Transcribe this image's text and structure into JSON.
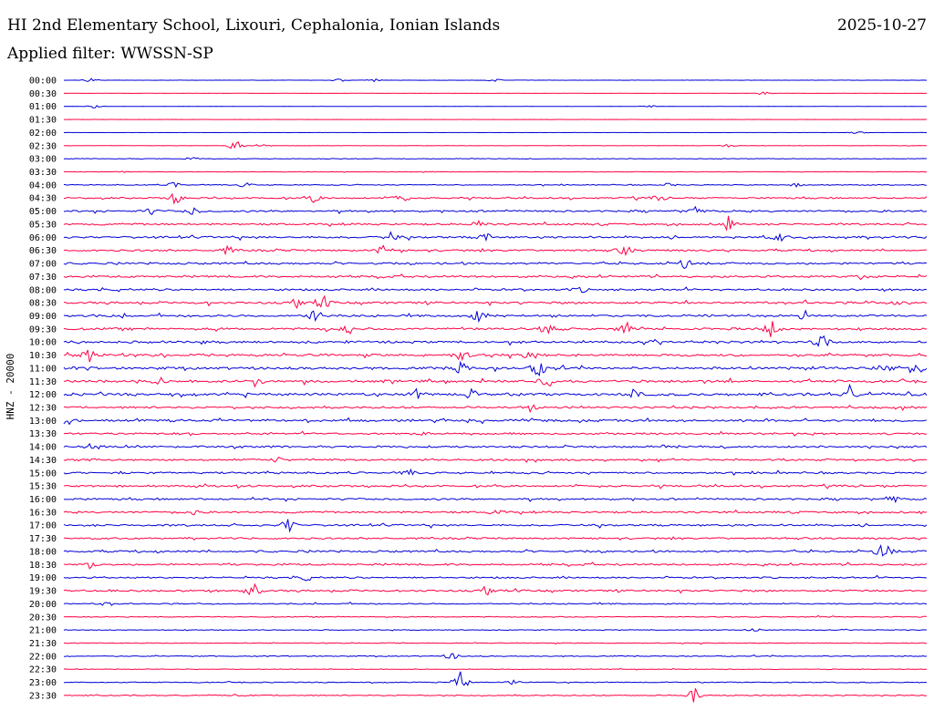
{
  "header": {
    "station_title": "HI 2nd Elementary School, Lixouri, Cephalonia, Ionian Islands",
    "date": "2025-10-27",
    "filter_label": "Applied filter: WWSSN-SP"
  },
  "chart_data": {
    "type": "line",
    "title": "HI 2nd Elementary School, Lixouri, Cephalonia, Ionian Islands",
    "subtitle": "Applied filter: WWSSN-SP",
    "ylabel": "HNZ - 20000",
    "grid": false,
    "colors": {
      "even_row": "#0000d8",
      "odd_row": "#ff0044"
    },
    "rows": [
      {
        "label": "00:00",
        "noise": 0.15,
        "events": [
          [
            0.03,
            3
          ],
          [
            0.32,
            2
          ],
          [
            0.36,
            2
          ],
          [
            0.5,
            2
          ]
        ]
      },
      {
        "label": "00:30",
        "noise": 0.1,
        "events": [
          [
            0.81,
            3
          ]
        ]
      },
      {
        "label": "01:00",
        "noise": 0.15,
        "events": [
          [
            0.035,
            2
          ],
          [
            0.68,
            1.5
          ]
        ]
      },
      {
        "label": "01:30",
        "noise": 0.1,
        "events": []
      },
      {
        "label": "02:00",
        "noise": 0.1,
        "events": [
          [
            0.92,
            2
          ]
        ]
      },
      {
        "label": "02:30",
        "noise": 0.25,
        "events": [
          [
            0.2,
            10
          ],
          [
            0.23,
            3
          ],
          [
            0.77,
            2
          ]
        ]
      },
      {
        "label": "03:00",
        "noise": 0.4,
        "events": [
          [
            0.15,
            2
          ]
        ]
      },
      {
        "label": "03:30",
        "noise": 0.3,
        "events": [
          [
            0.07,
            1.5
          ],
          [
            0.42,
            1.5
          ]
        ]
      },
      {
        "label": "04:00",
        "noise": 0.6,
        "events": [
          [
            0.13,
            5
          ],
          [
            0.21,
            3
          ],
          [
            0.7,
            2
          ],
          [
            0.85,
            2
          ]
        ]
      },
      {
        "label": "04:30",
        "noise": 1.0,
        "events": [
          [
            0.13,
            9
          ],
          [
            0.29,
            5
          ],
          [
            0.39,
            7
          ],
          [
            0.69,
            4
          ]
        ]
      },
      {
        "label": "05:00",
        "noise": 1.2,
        "events": [
          [
            0.1,
            4
          ],
          [
            0.15,
            5
          ],
          [
            0.73,
            6
          ]
        ]
      },
      {
        "label": "05:30",
        "noise": 1.2,
        "events": [
          [
            0.48,
            5
          ],
          [
            0.77,
            9
          ]
        ]
      },
      {
        "label": "06:00",
        "noise": 1.3,
        "events": [
          [
            0.38,
            6
          ],
          [
            0.49,
            6
          ],
          [
            0.83,
            5
          ]
        ]
      },
      {
        "label": "06:30",
        "noise": 1.2,
        "events": [
          [
            0.19,
            5
          ],
          [
            0.37,
            6
          ],
          [
            0.65,
            7
          ]
        ]
      },
      {
        "label": "07:00",
        "noise": 1.3,
        "events": [
          [
            0.72,
            6
          ]
        ]
      },
      {
        "label": "07:30",
        "noise": 1.3,
        "events": [
          [
            0.92,
            5
          ]
        ]
      },
      {
        "label": "08:00",
        "noise": 1.2,
        "events": [
          [
            0.6,
            3
          ]
        ]
      },
      {
        "label": "08:30",
        "noise": 1.4,
        "events": [
          [
            0.27,
            7
          ],
          [
            0.3,
            9
          ],
          [
            0.97,
            5
          ]
        ]
      },
      {
        "label": "09:00",
        "noise": 1.4,
        "events": [
          [
            0.29,
            12
          ],
          [
            0.48,
            7
          ],
          [
            0.86,
            8
          ]
        ]
      },
      {
        "label": "09:30",
        "noise": 1.4,
        "events": [
          [
            0.33,
            6
          ],
          [
            0.56,
            7
          ],
          [
            0.65,
            7
          ],
          [
            0.82,
            11
          ]
        ]
      },
      {
        "label": "10:00",
        "noise": 1.4,
        "events": [
          [
            0.88,
            12
          ]
        ]
      },
      {
        "label": "10:30",
        "noise": 1.5,
        "events": [
          [
            0.03,
            8
          ],
          [
            0.46,
            8
          ],
          [
            0.54,
            7
          ]
        ]
      },
      {
        "label": "11:00",
        "noise": 1.6,
        "events": [
          [
            0.46,
            11
          ],
          [
            0.55,
            13
          ],
          [
            0.95,
            8
          ],
          [
            0.99,
            9
          ]
        ]
      },
      {
        "label": "11:30",
        "noise": 1.5,
        "events": [
          [
            0.11,
            5
          ],
          [
            0.22,
            9
          ],
          [
            0.56,
            8
          ]
        ]
      },
      {
        "label": "12:00",
        "noise": 1.6,
        "events": [
          [
            0.41,
            6
          ],
          [
            0.47,
            8
          ],
          [
            0.66,
            6
          ],
          [
            0.91,
            12
          ]
        ]
      },
      {
        "label": "12:30",
        "noise": 1.3,
        "events": [
          [
            0.54,
            5
          ]
        ]
      },
      {
        "label": "13:00",
        "noise": 1.4,
        "events": [
          [
            0.003,
            6
          ]
        ]
      },
      {
        "label": "13:30",
        "noise": 1.2,
        "events": [
          [
            0.42,
            3
          ]
        ]
      },
      {
        "label": "14:00",
        "noise": 1.2,
        "events": [
          [
            0.04,
            3
          ]
        ]
      },
      {
        "label": "14:30",
        "noise": 1.2,
        "events": [
          [
            0.25,
            4
          ]
        ]
      },
      {
        "label": "15:00",
        "noise": 1.2,
        "events": [
          [
            0.4,
            4
          ]
        ]
      },
      {
        "label": "15:30",
        "noise": 1.2,
        "events": []
      },
      {
        "label": "16:00",
        "noise": 1.2,
        "events": [
          [
            0.96,
            4
          ]
        ]
      },
      {
        "label": "16:30",
        "noise": 1.2,
        "events": [
          [
            0.15,
            4
          ],
          [
            0.5,
            5
          ]
        ]
      },
      {
        "label": "17:00",
        "noise": 1.2,
        "events": [
          [
            0.26,
            9
          ]
        ]
      },
      {
        "label": "17:30",
        "noise": 1.1,
        "events": []
      },
      {
        "label": "18:00",
        "noise": 1.3,
        "events": [
          [
            0.95,
            13
          ]
        ]
      },
      {
        "label": "18:30",
        "noise": 1.2,
        "events": [
          [
            0.03,
            4
          ]
        ]
      },
      {
        "label": "19:00",
        "noise": 1.0,
        "events": [
          [
            0.28,
            3
          ]
        ]
      },
      {
        "label": "19:30",
        "noise": 1.2,
        "events": [
          [
            0.22,
            10
          ],
          [
            0.49,
            7
          ]
        ]
      },
      {
        "label": "20:00",
        "noise": 0.8,
        "events": [
          [
            0.05,
            3
          ]
        ]
      },
      {
        "label": "20:30",
        "noise": 0.6,
        "events": []
      },
      {
        "label": "21:00",
        "noise": 0.5,
        "events": [
          [
            0.8,
            3
          ]
        ]
      },
      {
        "label": "21:30",
        "noise": 0.5,
        "events": []
      },
      {
        "label": "22:00",
        "noise": 0.6,
        "events": [
          [
            0.45,
            5
          ]
        ]
      },
      {
        "label": "22:30",
        "noise": 0.4,
        "events": []
      },
      {
        "label": "23:00",
        "noise": 0.6,
        "events": [
          [
            0.46,
            14
          ],
          [
            0.52,
            3
          ]
        ]
      },
      {
        "label": "23:30",
        "noise": 0.7,
        "events": [
          [
            0.73,
            12
          ]
        ]
      }
    ]
  }
}
